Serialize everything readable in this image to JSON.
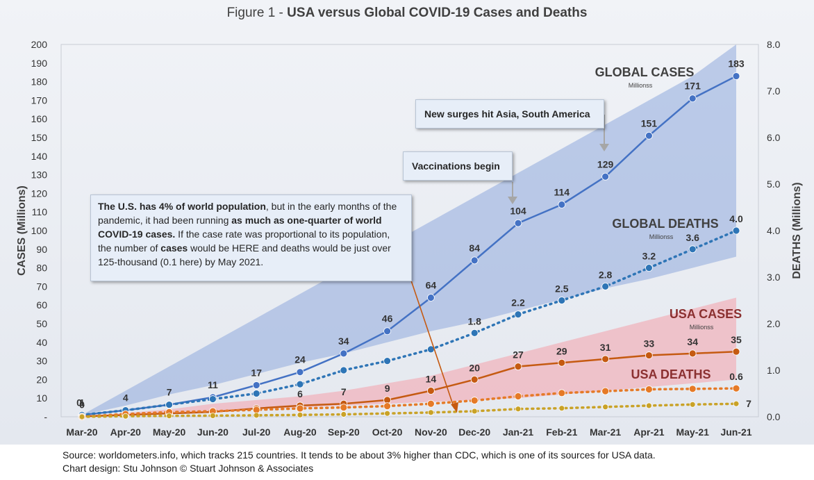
{
  "title": {
    "prefix": "Figure 1 - ",
    "main": "USA versus Global COVID-19 Cases and Deaths"
  },
  "colors": {
    "global_cases": "#4472c4",
    "global_deaths": "#2e75b6",
    "usa_cases": "#c55a11",
    "usa_deaths": "#e57a27",
    "usa_deaths_scaled": "#c9a227",
    "band_global": "#8faadc",
    "band_usa": "#f4a7b0"
  },
  "chart_data": {
    "type": "line",
    "categories": [
      "Mar-20",
      "Apr-20",
      "May-20",
      "Jun-20",
      "Jul-20",
      "Aug-20",
      "Sep-20",
      "Oct-20",
      "Nov-20",
      "Dec-20",
      "Jan-21",
      "Feb-21",
      "Mar-21",
      "Apr-21",
      "May-21",
      "Jun-21"
    ],
    "ylabel": "CASES (Millions)",
    "y2label": "DEATHS (Millions)",
    "ylim": [
      0,
      200
    ],
    "y2lim": [
      0,
      8
    ],
    "y_ticks": [
      "-",
      "10",
      "20",
      "30",
      "40",
      "50",
      "60",
      "70",
      "80",
      "90",
      "100",
      "110",
      "120",
      "130",
      "140",
      "150",
      "160",
      "170",
      "180",
      "190",
      "200"
    ],
    "y2_ticks": [
      "0.0",
      "1.0",
      "2.0",
      "3.0",
      "4.0",
      "5.0",
      "6.0",
      "7.0",
      "8.0"
    ],
    "series": [
      {
        "key": "global_cases",
        "name": "GLOBAL CASES",
        "sub": "Millionss",
        "axis": "left",
        "style": "solid",
        "values": [
          1,
          3.5,
          6.5,
          10.5,
          17,
          24,
          34,
          46,
          64,
          84,
          104,
          114,
          129,
          151,
          171,
          183
        ],
        "labels": [
          "1",
          "4",
          "7",
          "11",
          "17",
          "24",
          "34",
          "46",
          "64",
          "84",
          "104",
          "114",
          "129",
          "151",
          "171",
          "183"
        ]
      },
      {
        "key": "global_deaths",
        "name": "GLOBAL DEATHS",
        "sub": "Millionss",
        "axis": "right",
        "style": "dotted",
        "values": [
          0.04,
          0.14,
          0.26,
          0.38,
          0.5,
          0.7,
          1.0,
          1.2,
          1.45,
          1.8,
          2.2,
          2.5,
          2.8,
          3.2,
          3.6,
          4.0
        ],
        "labels": [
          "",
          "",
          "",
          "",
          "",
          "",
          "",
          "",
          "",
          "1.8",
          "2.2",
          "2.5",
          "2.8",
          "3.2",
          "3.6",
          "4.0"
        ]
      },
      {
        "key": "usa_cases",
        "name": "USA CASES",
        "sub": "Millionss",
        "axis": "left",
        "style": "solid",
        "values": [
          0.2,
          1,
          1.8,
          2.6,
          4.5,
          6,
          7,
          9,
          14,
          20,
          27,
          29,
          31,
          33,
          34,
          35
        ],
        "labels": [
          "0",
          "",
          "",
          "",
          "",
          "6",
          "7",
          "9",
          "14",
          "20",
          "27",
          "29",
          "31",
          "33",
          "34",
          "35"
        ]
      },
      {
        "key": "usa_deaths",
        "name": "USA DEATHS",
        "axis": "right",
        "style": "dotted",
        "values": [
          0.0,
          0.06,
          0.1,
          0.12,
          0.15,
          0.18,
          0.2,
          0.23,
          0.28,
          0.35,
          0.44,
          0.51,
          0.55,
          0.59,
          0.6,
          0.61
        ],
        "labels": [
          "",
          "",
          "",
          "",
          "",
          "",
          "",
          "",
          "",
          "",
          "",
          "",
          "",
          "",
          "",
          "0.6"
        ]
      },
      {
        "key": "usa_deaths_scaled",
        "name": "",
        "axis": "left",
        "style": "dotted",
        "values": [
          0,
          0.3,
          0.5,
          0.6,
          0.8,
          1.0,
          1.3,
          1.8,
          2.3,
          3.0,
          4.2,
          4.6,
          5.3,
          6.0,
          6.6,
          7.0
        ],
        "labels": [
          "",
          "",
          "",
          "",
          "",
          "",
          "",
          "",
          "",
          "",
          "",
          "",
          "",
          "",
          "",
          "7"
        ]
      }
    ],
    "bands": [
      {
        "key": "global_band",
        "lower": [
          1,
          1,
          1,
          1,
          1,
          1,
          1,
          1,
          1,
          1,
          1,
          1,
          1,
          1,
          1,
          1
        ],
        "upper": [
          1,
          14,
          27,
          40,
          53,
          66,
          79,
          92,
          105,
          118,
          131,
          144,
          157,
          170,
          183,
          200
        ],
        "lower_fill": [
          1,
          6,
          12,
          17,
          23,
          29,
          34,
          40,
          46,
          51,
          57,
          63,
          69,
          74,
          80,
          86
        ]
      },
      {
        "key": "usa_band",
        "lower": [
          0,
          1,
          2,
          3,
          4,
          5,
          6,
          7,
          8,
          9,
          10,
          12,
          14,
          16,
          18,
          20
        ],
        "upper": [
          0,
          2,
          4,
          7,
          9,
          11,
          14,
          18,
          22,
          28,
          34,
          40,
          46,
          52,
          58,
          64
        ]
      }
    ]
  },
  "annotations": {
    "pop_callout": {
      "part1": "The U.S. has 4% of world population",
      "part2": ", but in the early months of the pandemic, it had been running ",
      "part3": "as much as one-quarter of world COVID-19 cases.",
      "part4": " If the case rate was proportional to its population, the number of ",
      "part5": "cases",
      "part6": " would be HERE and deaths would be just over 125-thousand (0.1 here) by May 2021."
    },
    "vacc_callout": "Vaccinations begin",
    "surge_callout": "New surges hit Asia, South America",
    "first_label_overlap": "0"
  },
  "footer": {
    "line1": "Source: worldometers.info, which tracks 215 countries. It tends to be about 3% higher than CDC, which is one of its sources for USA data.",
    "line2": "Chart design: Stu Johnson  © Stuart Johnson & Associates"
  }
}
